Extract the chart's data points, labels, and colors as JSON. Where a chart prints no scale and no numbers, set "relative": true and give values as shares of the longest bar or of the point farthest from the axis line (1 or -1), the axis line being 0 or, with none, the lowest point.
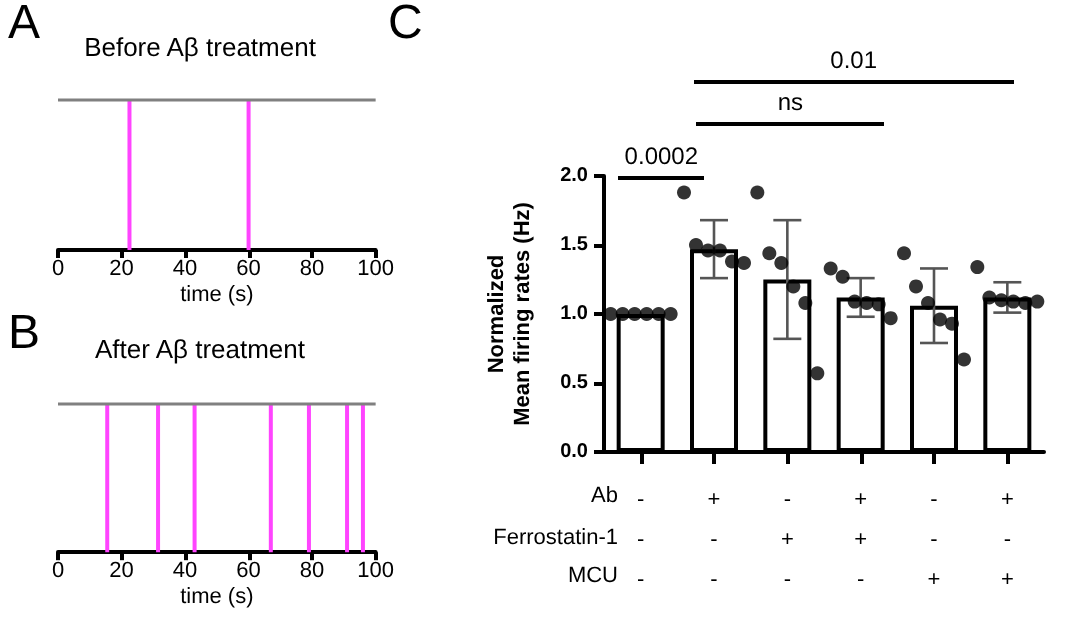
{
  "chart_data": [
    {
      "type": "bar",
      "title": "Before Aβ treatment",
      "xlabel": "time (s)",
      "annotations": [
        "A"
      ],
      "x": [
        22.5,
        60
      ],
      "values": [
        1,
        1
      ],
      "relative": true,
      "color": "#ff44ff",
      "xlim": [
        0,
        100
      ],
      "xticks": [
        0,
        20,
        40,
        60,
        80,
        100
      ],
      "ref_lines": [
        {
          "axis": "y",
          "value": 1,
          "color": "#808080"
        }
      ]
    },
    {
      "type": "bar",
      "title": "After Aβ treatment",
      "xlabel": "time (s)",
      "annotations": [
        "B"
      ],
      "x": [
        15.5,
        31.5,
        43,
        67,
        79,
        91,
        96
      ],
      "values": [
        1,
        1,
        1,
        1,
        1,
        1,
        1
      ],
      "relative": true,
      "color": "#ff44ff",
      "xlim": [
        0,
        100
      ],
      "xticks": [
        0,
        20,
        40,
        60,
        80,
        100
      ],
      "ref_lines": [
        {
          "axis": "y",
          "value": 1,
          "color": "#808080"
        }
      ]
    },
    {
      "type": "bar",
      "ylabel": "Normalized\nMean firing rates (Hz)",
      "annotations": [
        "C",
        "0.0002",
        "ns",
        "0.01",
        "Ab",
        "Ferrostatin-1",
        "MCU"
      ],
      "categories": [
        "-\n-\n-",
        "+\n-\n-",
        "-\n+\n-",
        "+\n+\n-",
        "-\n-\n+",
        "+\n-\n+"
      ],
      "ylim": [
        0,
        2
      ],
      "yticks": [
        {
          "value": 0,
          "label": "0.0"
        },
        0.5,
        {
          "value": 1,
          "label": "1.0"
        },
        1.5,
        {
          "value": 2,
          "label": "2.0"
        }
      ],
      "series": [
        {
          "color": "#ffffff",
          "values": [
            1.0,
            1.47,
            1.25,
            1.12,
            1.06,
            1.12
          ],
          "errors": [
            null,
            0.21,
            0.43,
            0.14,
            0.27,
            0.11
          ]
        },
        {
          "type": "scatter",
          "color": "#000000",
          "marker": "circle",
          "x": [
            "-\n-\n-",
            "-\n-\n-",
            "-\n-\n-",
            "-\n-\n-",
            "-\n-\n-",
            "-\n-\n-",
            "+\n-\n-",
            "+\n-\n-",
            "+\n-\n-",
            "+\n-\n-",
            "+\n-\n-",
            "+\n-\n-",
            "-\n+\n-",
            "-\n+\n-",
            "-\n+\n-",
            "-\n+\n-",
            "-\n+\n-",
            "-\n+\n-",
            "+\n+\n-",
            "+\n+\n-",
            "+\n+\n-",
            "+\n+\n-",
            "+\n+\n-",
            "+\n+\n-",
            "-\n-\n+",
            "-\n-\n+",
            "-\n-\n+",
            "-\n-\n+",
            "-\n-\n+",
            "-\n-\n+",
            "+\n-\n+",
            "+\n-\n+",
            "+\n-\n+",
            "+\n-\n+",
            "+\n-\n+",
            "+\n-\n+"
          ],
          "values": [
            1,
            1,
            1,
            1,
            1,
            1,
            1.88,
            1.5,
            1.46,
            1.46,
            1.38,
            1.37,
            1.88,
            1.44,
            1.37,
            1.2,
            1.08,
            0.57,
            1.33,
            1.27,
            1.09,
            1.08,
            1.07,
            0.97,
            1.44,
            1.2,
            1.08,
            0.96,
            0.93,
            0.67,
            1.34,
            1.12,
            1.1,
            1.09,
            1.08,
            1.09
          ]
        }
      ]
    }
  ]
}
